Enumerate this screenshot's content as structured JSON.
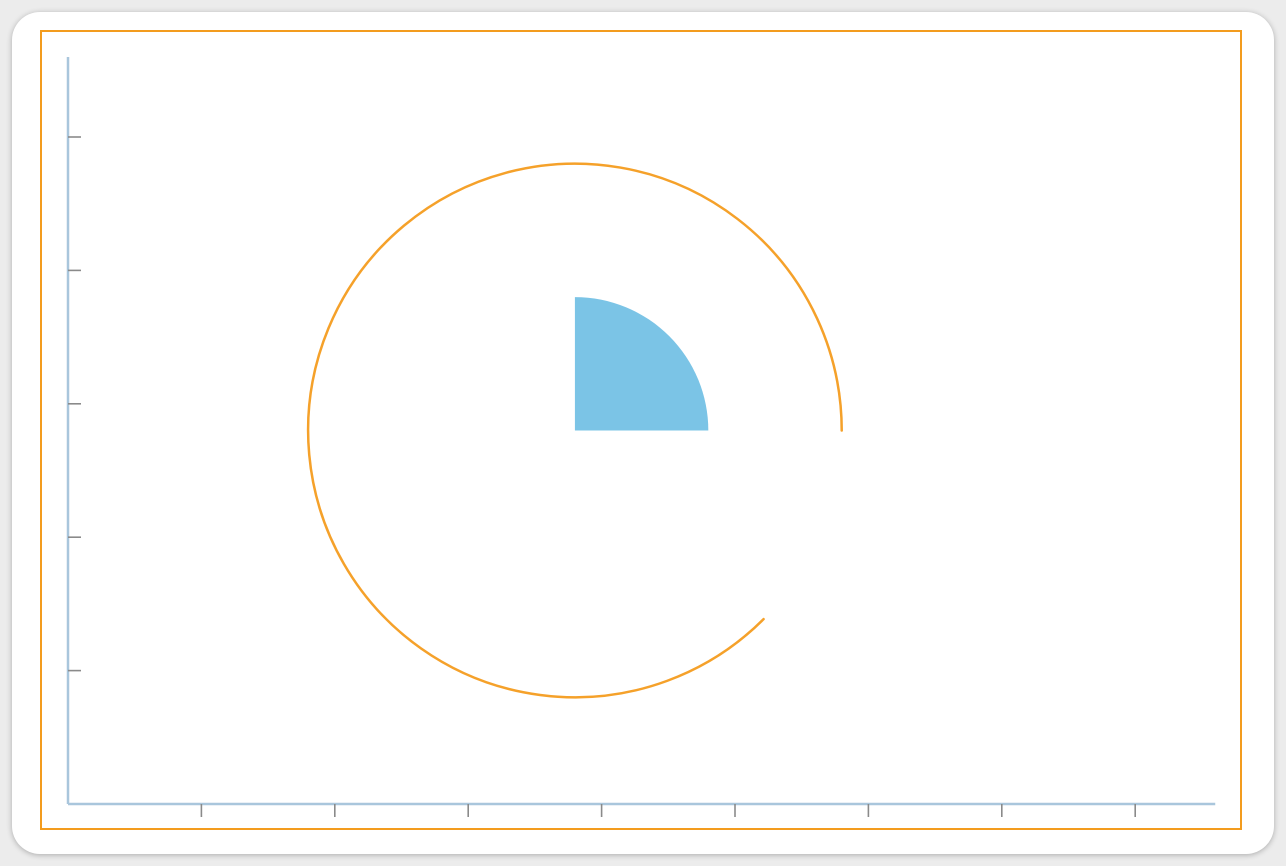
{
  "chart_data": {
    "type": "other",
    "title": "",
    "xlabel": "",
    "ylabel": "",
    "x_ticks": [
      1,
      2,
      3,
      4,
      5,
      6,
      7,
      8
    ],
    "y_ticks": [
      1,
      2,
      3,
      4,
      5
    ],
    "xlim": [
      0,
      8.6
    ],
    "ylim": [
      0,
      5.6
    ],
    "grid": false,
    "legend": "none",
    "shapes": [
      {
        "name": "arc",
        "kind": "arc",
        "center": [
          3.8,
          2.8
        ],
        "radius": 2.0,
        "start_angle_deg": 0,
        "end_angle_deg": 315,
        "direction": "counterclockwise",
        "color": "#f5a12a"
      },
      {
        "name": "quarter-wedge",
        "kind": "wedge",
        "center": [
          3.8,
          2.8
        ],
        "radius": 1.0,
        "start_angle_deg": 0,
        "end_angle_deg": 90,
        "color": "#7bc4e6"
      }
    ],
    "axis_color": "#a9c6dc",
    "tick_color": "#8a8a8a"
  }
}
